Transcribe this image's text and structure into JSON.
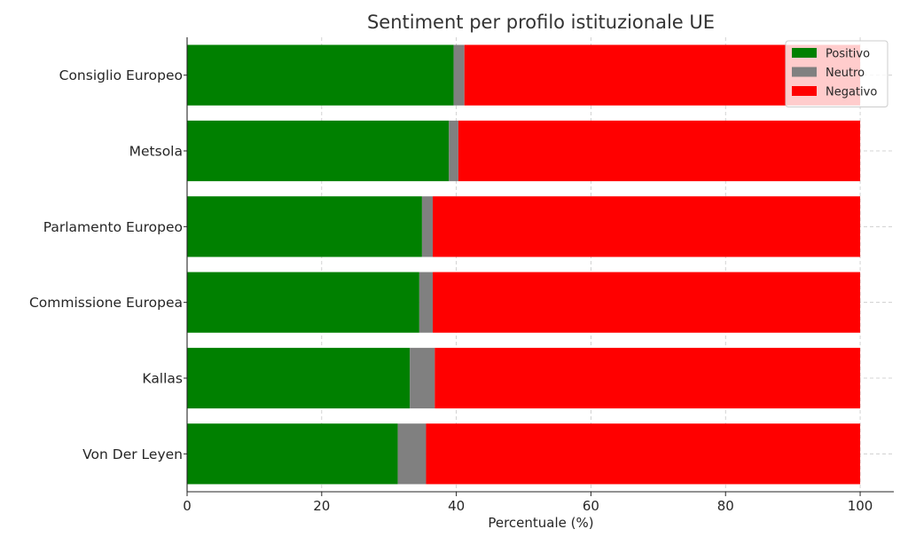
{
  "chart_data": {
    "type": "bar",
    "orientation": "horizontal",
    "stacked": true,
    "title": "Sentiment per profilo istituzionale UE",
    "xlabel": "Percentuale (%)",
    "ylabel": "",
    "xlim": [
      0,
      105
    ],
    "xticks": [
      0,
      20,
      40,
      60,
      80,
      100
    ],
    "grid": true,
    "legend_position": "top-right",
    "categories": [
      "Consiglio Europeo",
      "Metsola",
      "Parlamento Europeo",
      "Commissione Europea",
      "Kallas",
      "Von Der Leyen"
    ],
    "series": [
      {
        "name": "Positivo",
        "color": "#008000",
        "values": [
          39.6,
          38.9,
          34.9,
          34.5,
          33.1,
          31.3
        ]
      },
      {
        "name": "Neutro",
        "color": "#808080",
        "values": [
          1.6,
          1.4,
          1.6,
          2.0,
          3.7,
          4.2
        ]
      },
      {
        "name": "Negativo",
        "color": "#ff0000",
        "values": [
          58.8,
          59.7,
          63.5,
          63.5,
          63.2,
          64.5
        ]
      }
    ]
  }
}
